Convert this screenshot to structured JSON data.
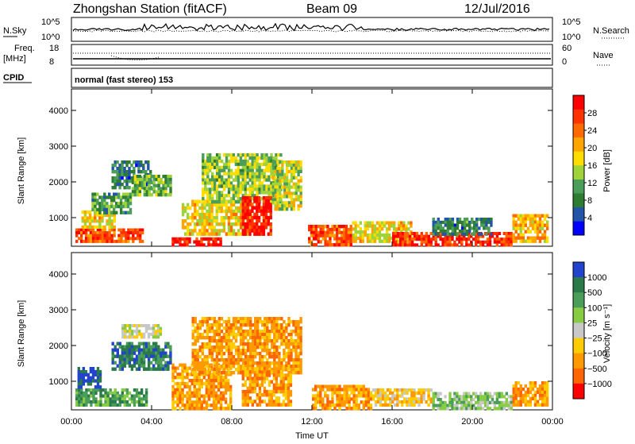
{
  "header": {
    "station_title": "Zhongshan Station (fitACF)",
    "beam_label": "Beam 09",
    "date": "12/Jul/2016"
  },
  "top_panels": {
    "nsky_label": "N.Sky",
    "nsky_ticks": [
      "10^5",
      "10^0"
    ],
    "nsearch_label": "N.Search",
    "nsearch_ticks": [
      "10^5",
      "10^0"
    ],
    "freq_label": "Freq.",
    "freq_unit": "[MHz]",
    "freq_ticks": [
      "18",
      "8"
    ],
    "nave_label": "Nave",
    "nave_ticks": [
      "60",
      "0"
    ],
    "cpid_label": "CPID",
    "cpid_text": "normal (fast stereo) 153"
  },
  "colors": {
    "power_scale": [
      "#0000ff",
      "#2255aa",
      "#2e7d32",
      "#4a9e5a",
      "#9fd33a",
      "#ffdd00",
      "#ffa500",
      "#ff6a00",
      "#ff3300",
      "#ff0000"
    ],
    "velocity_scale": [
      "#2244cc",
      "#2a7a4a",
      "#4a9e5a",
      "#88cc44",
      "#c8c8c8",
      "#ffcc00",
      "#ff9900",
      "#ff6600",
      "#ff0000"
    ]
  },
  "chart_data": [
    {
      "type": "heatmap",
      "name": "power",
      "ylabel": "Slant Range [km]",
      "x_ticks": [
        "00:00",
        "04:00",
        "08:00",
        "12:00",
        "16:00",
        "20:00",
        "00:00"
      ],
      "y_ticks": [
        1000,
        2000,
        3000,
        4000
      ],
      "ylim": [
        200,
        4600
      ],
      "xlim_hours": [
        0,
        24
      ],
      "colorbar_label": "Power [dB]",
      "colorbar_ticks": [
        4,
        8,
        12,
        16,
        20,
        24,
        28
      ],
      "colorbar_range": [
        0,
        32
      ],
      "regions": [
        {
          "t0": 0.2,
          "t1": 3.6,
          "r0": 300,
          "r1": 700,
          "level": 26
        },
        {
          "t0": 0.5,
          "t1": 2.2,
          "r0": 700,
          "r1": 1200,
          "level": 18
        },
        {
          "t0": 1.0,
          "t1": 3.0,
          "r0": 1100,
          "r1": 1700,
          "level": 10
        },
        {
          "t0": 2.0,
          "t1": 4.0,
          "r0": 1800,
          "r1": 2600,
          "level": 8
        },
        {
          "t0": 3.0,
          "t1": 5.0,
          "r0": 1600,
          "r1": 2200,
          "level": 12
        },
        {
          "t0": 5.0,
          "t1": 7.5,
          "r0": 200,
          "r1": 450,
          "level": 30
        },
        {
          "t0": 5.5,
          "t1": 9.0,
          "r0": 500,
          "r1": 1500,
          "level": 18
        },
        {
          "t0": 6.5,
          "t1": 10.5,
          "r0": 1400,
          "r1": 2800,
          "level": 14
        },
        {
          "t0": 8.5,
          "t1": 10.0,
          "r0": 500,
          "r1": 1600,
          "level": 30
        },
        {
          "t0": 10.0,
          "t1": 11.5,
          "r0": 1200,
          "r1": 2600,
          "level": 16
        },
        {
          "t0": 11.8,
          "t1": 14.0,
          "r0": 200,
          "r1": 800,
          "level": 26
        },
        {
          "t0": 14.0,
          "t1": 17.0,
          "r0": 300,
          "r1": 900,
          "level": 18
        },
        {
          "t0": 16.0,
          "t1": 22.0,
          "r0": 200,
          "r1": 600,
          "level": 28
        },
        {
          "t0": 18.0,
          "t1": 21.0,
          "r0": 500,
          "r1": 1000,
          "level": 8
        },
        {
          "t0": 22.0,
          "t1": 23.8,
          "r0": 300,
          "r1": 1100,
          "level": 20
        }
      ]
    },
    {
      "type": "heatmap",
      "name": "velocity",
      "ylabel": "Slant Range [km]",
      "xlabel": "Time UT",
      "x_ticks": [
        "00:00",
        "04:00",
        "08:00",
        "12:00",
        "16:00",
        "20:00",
        "00:00"
      ],
      "y_ticks": [
        1000,
        2000,
        3000,
        4000
      ],
      "ylim": [
        200,
        4600
      ],
      "xlim_hours": [
        0,
        24
      ],
      "colorbar_label": "Velocity [m s⁻¹]",
      "colorbar_ticks": [
        "1000",
        "500",
        "100",
        "25",
        "−25",
        "−100",
        "−500",
        "−1000"
      ],
      "regions": [
        {
          "t0": 0.2,
          "t1": 3.8,
          "r0": 300,
          "r1": 800,
          "level": 2
        },
        {
          "t0": 0.3,
          "t1": 1.5,
          "r0": 800,
          "r1": 1400,
          "level": 0
        },
        {
          "t0": 2.5,
          "t1": 4.5,
          "r0": 2200,
          "r1": 2600,
          "level": 4
        },
        {
          "t0": 2.0,
          "t1": 5.0,
          "r0": 1300,
          "r1": 2100,
          "level": 1
        },
        {
          "t0": 5.0,
          "t1": 8.0,
          "r0": 200,
          "r1": 1500,
          "level": 6
        },
        {
          "t0": 6.0,
          "t1": 11.5,
          "r0": 1200,
          "r1": 2800,
          "level": 6
        },
        {
          "t0": 8.5,
          "t1": 11.0,
          "r0": 300,
          "r1": 1400,
          "level": 6
        },
        {
          "t0": 12.0,
          "t1": 15.0,
          "r0": 200,
          "r1": 900,
          "level": 6
        },
        {
          "t0": 15.0,
          "t1": 18.0,
          "r0": 300,
          "r1": 800,
          "level": 5
        },
        {
          "t0": 18.0,
          "t1": 22.0,
          "r0": 200,
          "r1": 700,
          "level": 3
        },
        {
          "t0": 22.0,
          "t1": 23.8,
          "r0": 300,
          "r1": 1000,
          "level": 6
        }
      ]
    }
  ]
}
